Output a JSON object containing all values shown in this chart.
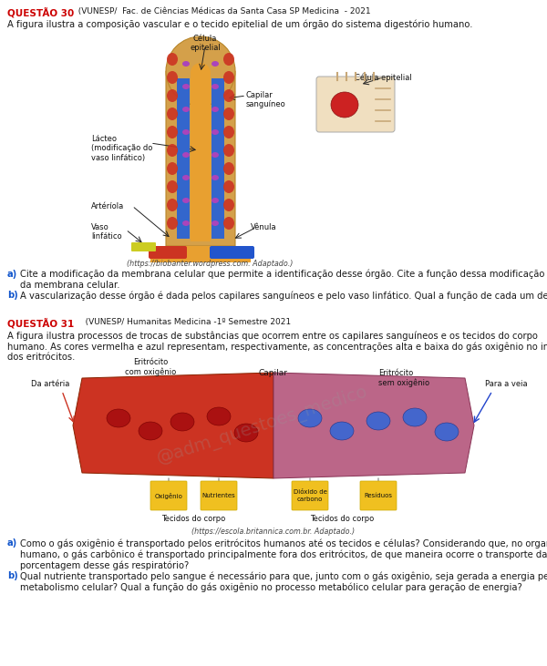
{
  "bg_color": "#ffffff",
  "title_color": "#cc0000",
  "body_color": "#1a1a1a",
  "ab_color": "#1155cc",
  "q30_label": "QUESTÃO 30",
  "q30_source": "  (VUNESP/  Fac. de Ciências Médicas da Santa Casa SP Medicina  - 2021",
  "q30_intro": "A figura ilustra a composição vascular e o tecido epitelial de um órgão do sistema digestório humano.",
  "q30_cite1": "(https://biobanter.wordpress.com. Adaptado.)",
  "q30_a_text": "Cite a modificação da membrana celular que permite a identificação desse órgão. Cite a função dessa modificação da membrana celular.",
  "q30_b_text": "A vascularização desse órgão é dada pelos capilares sanguíneos e pelo vaso linfático. Qual a função de cada um desses vasos presentes nessa região?",
  "q31_label": "QUESTÃO 31",
  "q31_source": "   (VUNESP/ Humanitas Medicina -1º Semestre 2021",
  "q31_intro": "A figura ilustra processos de trocas de substâncias que ocorrem entre os capilares sanguíneos e os tecidos do corpo\nhumano. As cores vermelha e azul representam, respectivamente, as concentrações alta e baixa do gás oxigênio no interior\ndos eritrócitos.",
  "q31_cite2": "(https://escola.britannica.com.br. Adaptado.)",
  "q31_a_text": "Como o gás oxigênio é transportado pelos eritrócitos humanos até os tecidos e células? Considerando que, no organismo\nhumano, o gás carbônico é transportado principalmente fora dos eritrócitos, de que maneira ocorre o transporte da maior\nporcentagem desse gás respiratório?",
  "q31_b_text": "Qual nutriente transportado pelo sangue é necessário para que, junto com o gás oxigênio, seja gerada a energia pelo\nmetabolismo celular? Qual a função do gás oxigênio no processo metabólico celular para geração de energia?"
}
